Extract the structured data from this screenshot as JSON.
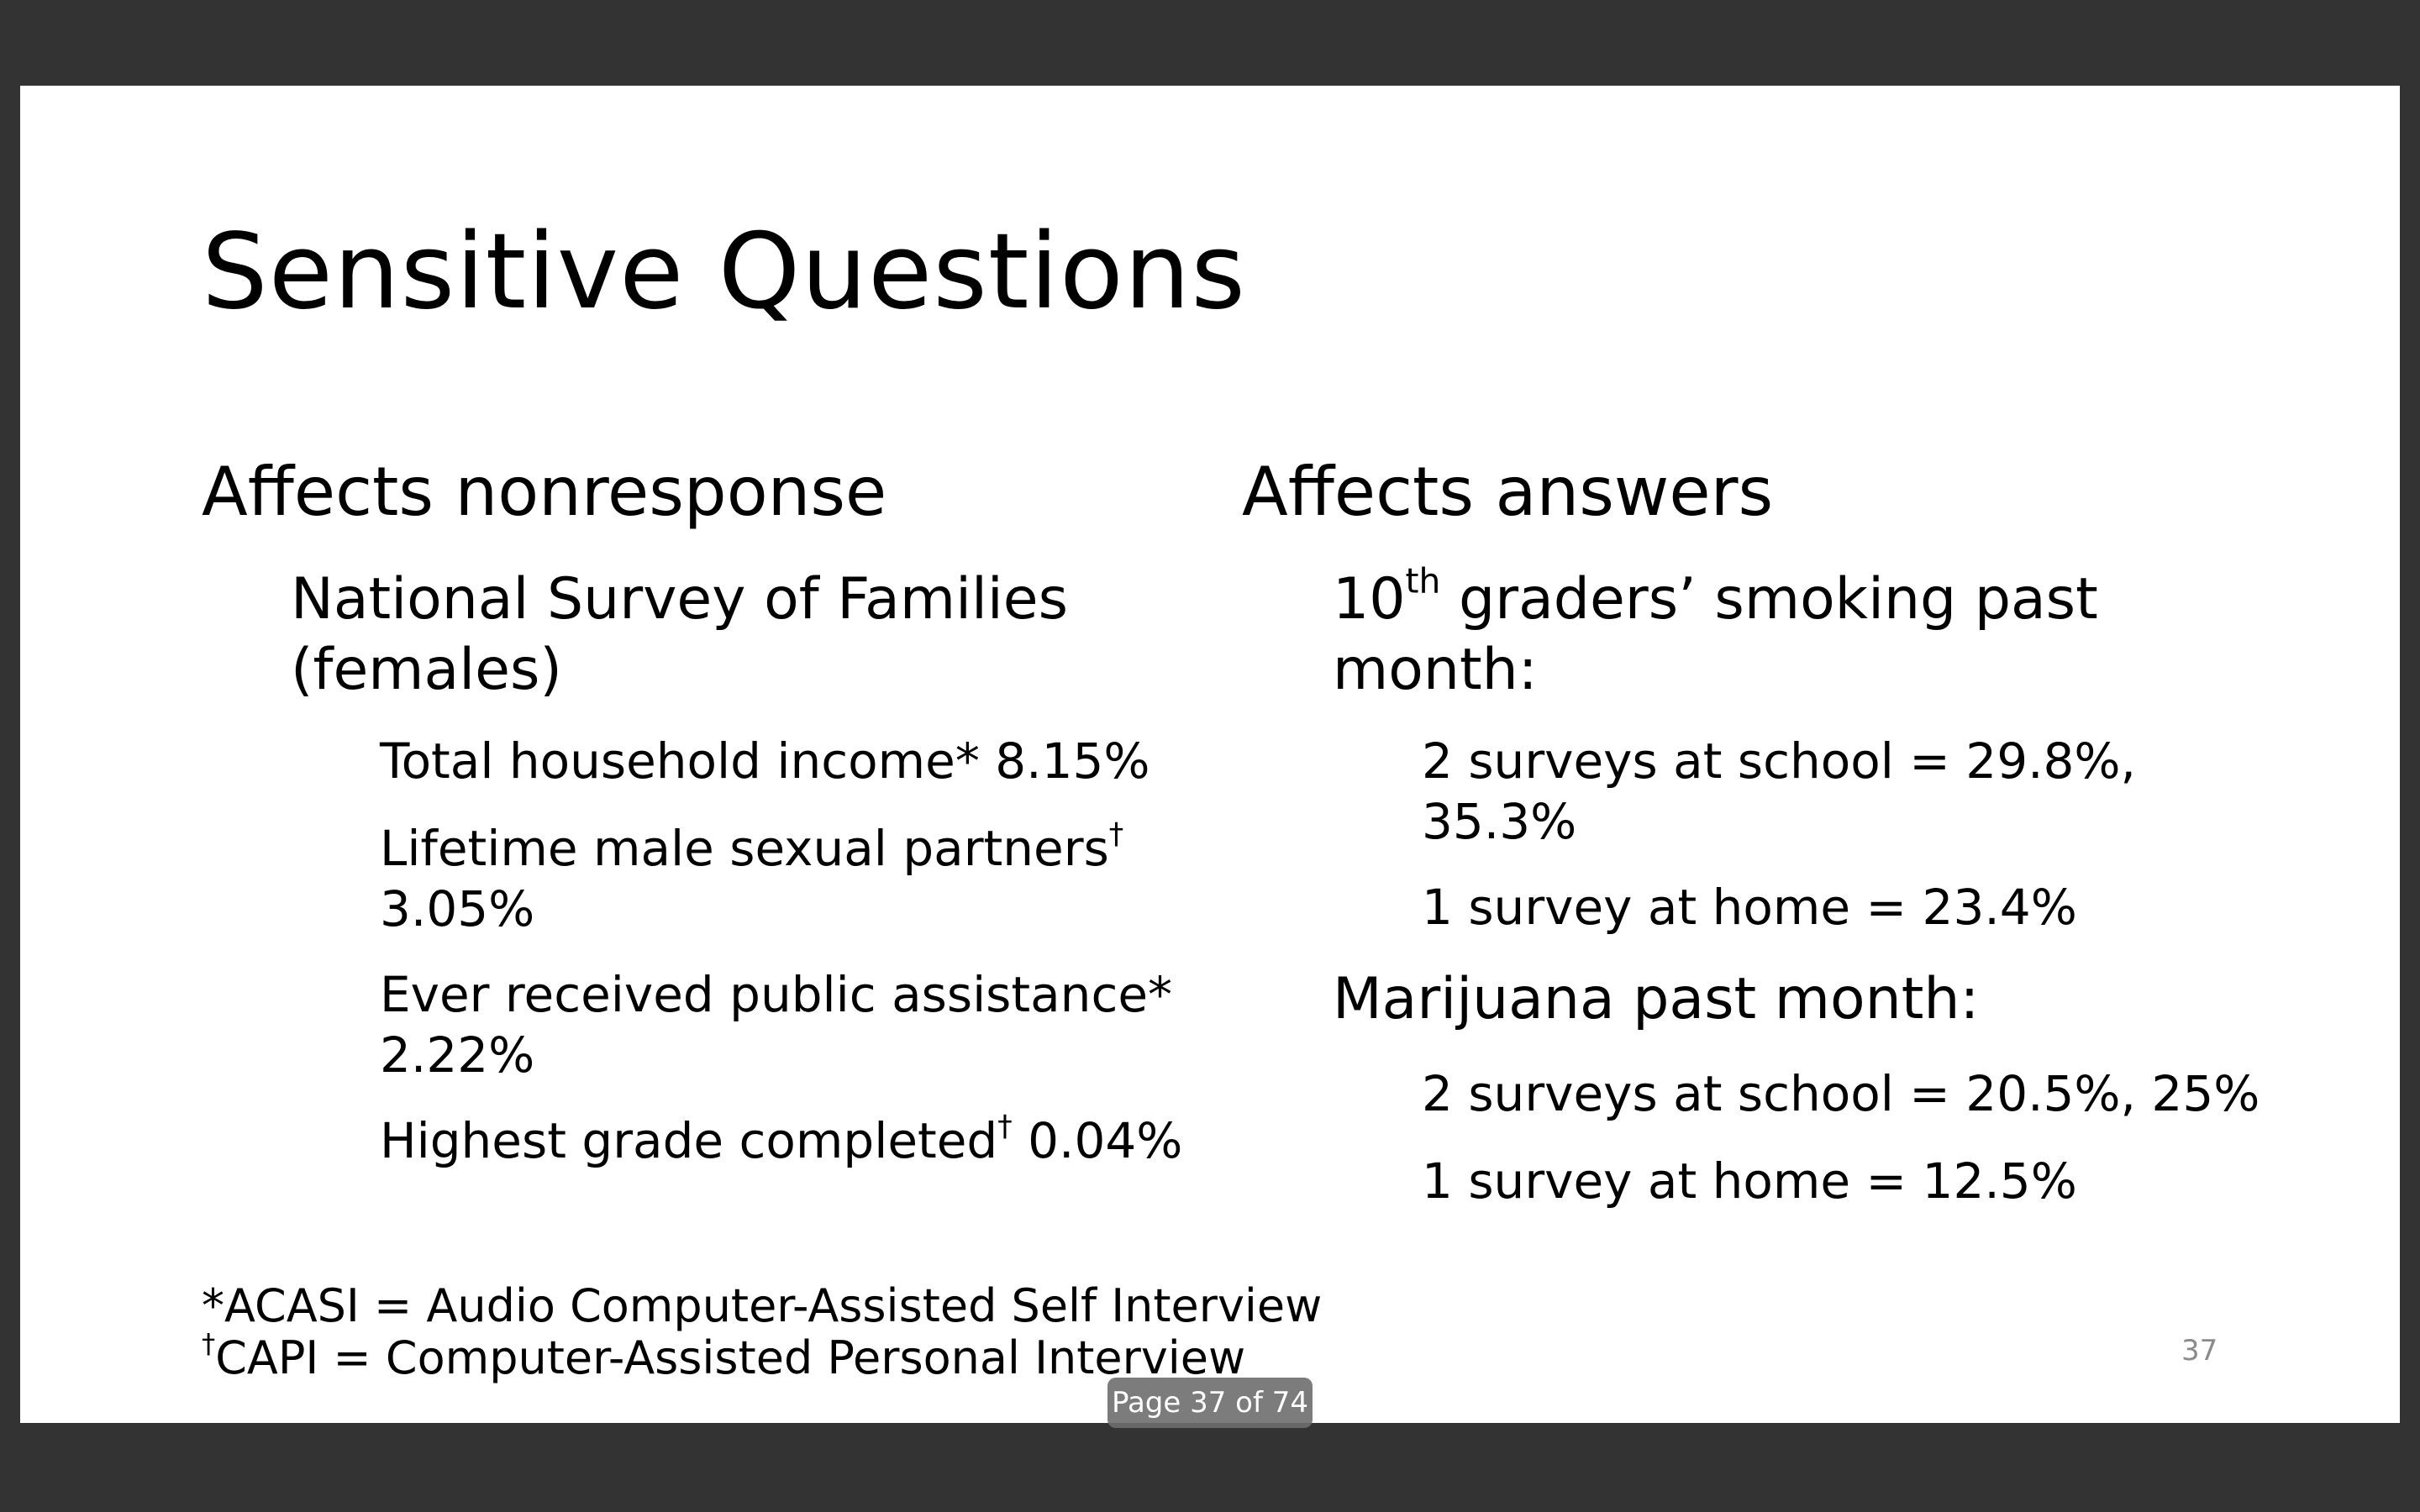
{
  "slide": {
    "title": "Sensitive Questions",
    "left": {
      "heading": "Affects nonresponse",
      "survey_line1": "National Survey of Families",
      "survey_line2": "(females)",
      "items": [
        {
          "label": "Total household income",
          "mark": "*",
          "value": "8.15%"
        },
        {
          "label": "Lifetime male sexual partners",
          "mark": "†",
          "value": "3.05%"
        },
        {
          "label": "Ever received public assistance",
          "mark": "*",
          "value": "2.22%"
        },
        {
          "label": "Highest grade completed",
          "mark": "†",
          "value": "0.04%"
        }
      ]
    },
    "right": {
      "heading": "Affects answers",
      "smoking": {
        "ordinal_num": "10",
        "ordinal_suffix": "th",
        "rest": " graders’ smoking past",
        "line2": "month:",
        "school_line1": "2 surveys at school = 29.8%,",
        "school_line2": "35.3%",
        "home": "1 survey at home = 23.4%"
      },
      "marijuana": {
        "heading": "Marijuana past month:",
        "school": "2 surveys at school = 20.5%, 25%",
        "home": "1 survey at home = 12.5%"
      }
    },
    "footnotes": {
      "acasi_mark": "*",
      "acasi_text": "ACASI = Audio Computer-Assisted Self Interview",
      "capi_mark": "†",
      "capi_text": "CAPI = Computer-Assisted Personal Interview"
    },
    "page_number": "37"
  },
  "viewer": {
    "page_indicator": "Page 37 of 74"
  }
}
